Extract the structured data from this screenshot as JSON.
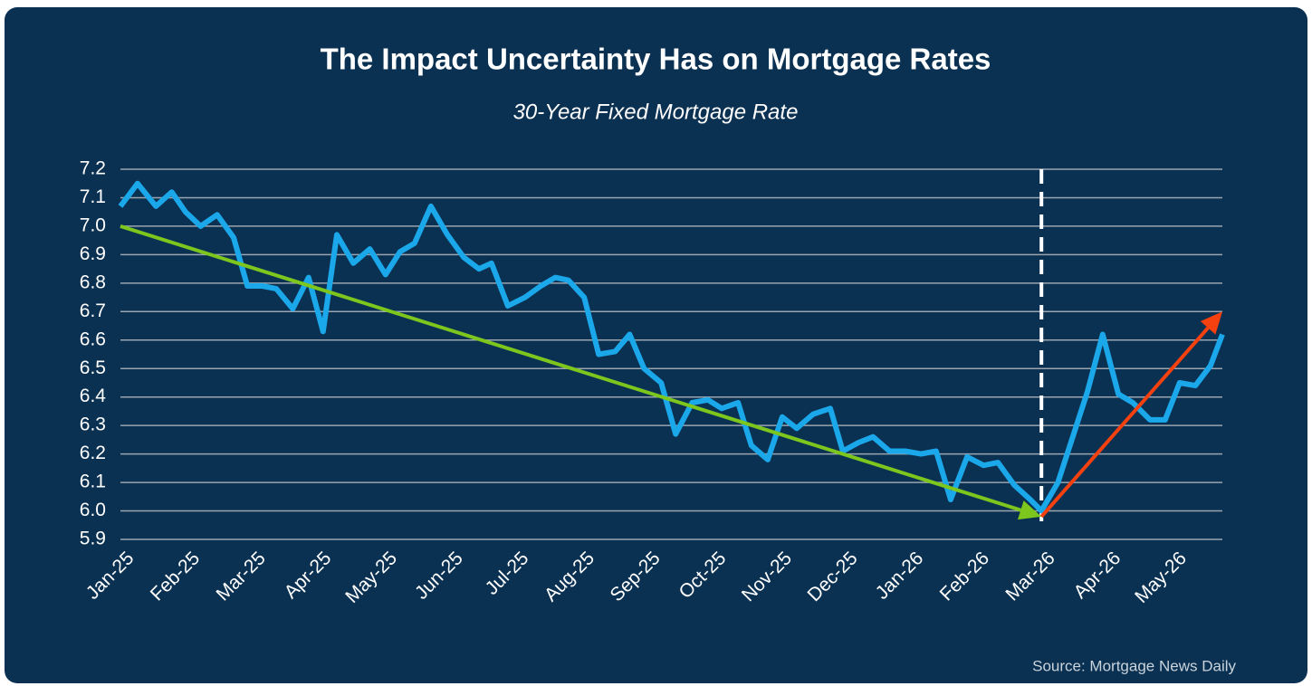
{
  "chart_data": {
    "type": "line",
    "title": "The Impact Uncertainty Has on Mortgage Rates",
    "subtitle": "30-Year Fixed Mortgage Rate",
    "source": "Source: Mortgage News Daily",
    "color": "#1ba8ea",
    "grid": true,
    "xlim": [
      0,
      16.75
    ],
    "ylim": [
      5.9,
      7.2
    ],
    "yticks": [
      5.9,
      {
        "value": 6,
        "label": "6.0"
      },
      6.1,
      6.2,
      6.3,
      6.4,
      6.5,
      6.6,
      6.7,
      6.8,
      6.9,
      {
        "value": 7,
        "label": "7.0"
      },
      7.1,
      7.2
    ],
    "xticks": [
      {
        "value": 0,
        "label": "Jan-25"
      },
      {
        "value": 1,
        "label": "Feb-25"
      },
      {
        "value": 2,
        "label": "Mar-25"
      },
      {
        "value": 3,
        "label": "Apr-25"
      },
      {
        "value": 4,
        "label": "May-25"
      },
      {
        "value": 5,
        "label": "Jun-25"
      },
      {
        "value": 6,
        "label": "Jul-25"
      },
      {
        "value": 7,
        "label": "Aug-25"
      },
      {
        "value": 8,
        "label": "Sep-25"
      },
      {
        "value": 9,
        "label": "Oct-25"
      },
      {
        "value": 10,
        "label": "Nov-25"
      },
      {
        "value": 11,
        "label": "Dec-25"
      },
      {
        "value": 12,
        "label": "Jan-26"
      },
      {
        "value": 13,
        "label": "Feb-26"
      },
      {
        "value": 14,
        "label": "Mar-26"
      },
      {
        "value": 15,
        "label": "Apr-26"
      },
      {
        "value": 16,
        "label": "May-26"
      }
    ],
    "x": [
      0,
      0.26,
      0.54,
      0.78,
      0.99,
      1.22,
      1.47,
      1.72,
      1.93,
      2.16,
      2.37,
      2.62,
      2.86,
      3.08,
      3.29,
      3.54,
      3.79,
      4.03,
      4.25,
      4.47,
      4.72,
      4.97,
      5.22,
      5.45,
      5.64,
      5.89,
      6.15,
      6.39,
      6.61,
      6.81,
      7.05,
      7.27,
      7.52,
      7.74,
      7.96,
      8.22,
      8.44,
      8.69,
      8.93,
      9.14,
      9.39,
      9.59,
      9.84,
      10.06,
      10.28,
      10.53,
      10.79,
      10.98,
      11.22,
      11.44,
      11.69,
      11.93,
      12.17,
      12.4,
      12.62,
      12.87,
      13.12,
      13.34,
      13.59,
      13.83,
      14.0,
      14.25,
      14.49,
      14.7,
      14.93,
      15.17,
      15.39,
      15.65,
      15.88,
      16.1,
      16.34,
      16.57,
      16.75
    ],
    "values": [
      7.07,
      7.15,
      7.07,
      7.12,
      7.05,
      7.0,
      7.04,
      6.96,
      6.79,
      6.79,
      6.78,
      6.71,
      6.82,
      6.63,
      6.97,
      6.87,
      6.92,
      6.83,
      6.91,
      6.94,
      7.07,
      6.97,
      6.89,
      6.85,
      6.87,
      6.72,
      6.75,
      6.79,
      6.82,
      6.81,
      6.75,
      6.55,
      6.56,
      6.62,
      6.5,
      6.45,
      6.27,
      6.38,
      6.39,
      6.36,
      6.38,
      6.23,
      6.18,
      6.33,
      6.29,
      6.34,
      6.36,
      6.21,
      6.24,
      6.26,
      6.21,
      6.21,
      6.2,
      6.21,
      6.04,
      6.19,
      6.16,
      6.17,
      6.09,
      6.04,
      6.0,
      6.1,
      6.27,
      6.42,
      6.62,
      6.41,
      6.38,
      6.32,
      6.32,
      6.45,
      6.44,
      6.51,
      6.62
    ],
    "divider_x": 14,
    "trend_lines": [
      {
        "color": "#7cc61e",
        "x": [
          0,
          14
        ],
        "y": [
          7.0,
          5.98
        ]
      },
      {
        "color": "#f5400f",
        "x": [
          14,
          16.75
        ],
        "y": [
          5.98,
          6.7
        ]
      }
    ]
  }
}
